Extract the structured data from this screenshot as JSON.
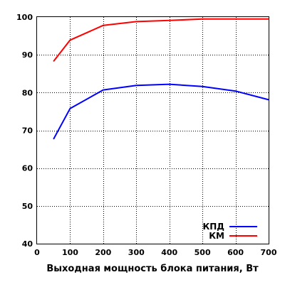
{
  "chart_data": {
    "type": "line",
    "title": "",
    "xlabel": "Выходная мощность блока питания, Вт",
    "ylabel": "",
    "xlim": [
      0,
      700
    ],
    "ylim": [
      40,
      100
    ],
    "xticks": [
      0,
      100,
      200,
      300,
      400,
      500,
      600,
      700
    ],
    "yticks": [
      40,
      50,
      60,
      70,
      80,
      90,
      100
    ],
    "grid": "dotted",
    "legend_position": "bottom-right",
    "series": [
      {
        "name": "КПД",
        "color": "#0000ff",
        "x": [
          50,
          100,
          200,
          300,
          400,
          500,
          600,
          700
        ],
        "y": [
          67.7,
          75.8,
          80.7,
          81.9,
          82.2,
          81.6,
          80.4,
          78.1
        ]
      },
      {
        "name": "КМ",
        "color": "#ff0000",
        "x": [
          50,
          100,
          200,
          300,
          400,
          500,
          600,
          700
        ],
        "y": [
          88.3,
          93.9,
          97.8,
          98.8,
          99.1,
          99.5,
          99.5,
          99.5
        ]
      }
    ]
  }
}
